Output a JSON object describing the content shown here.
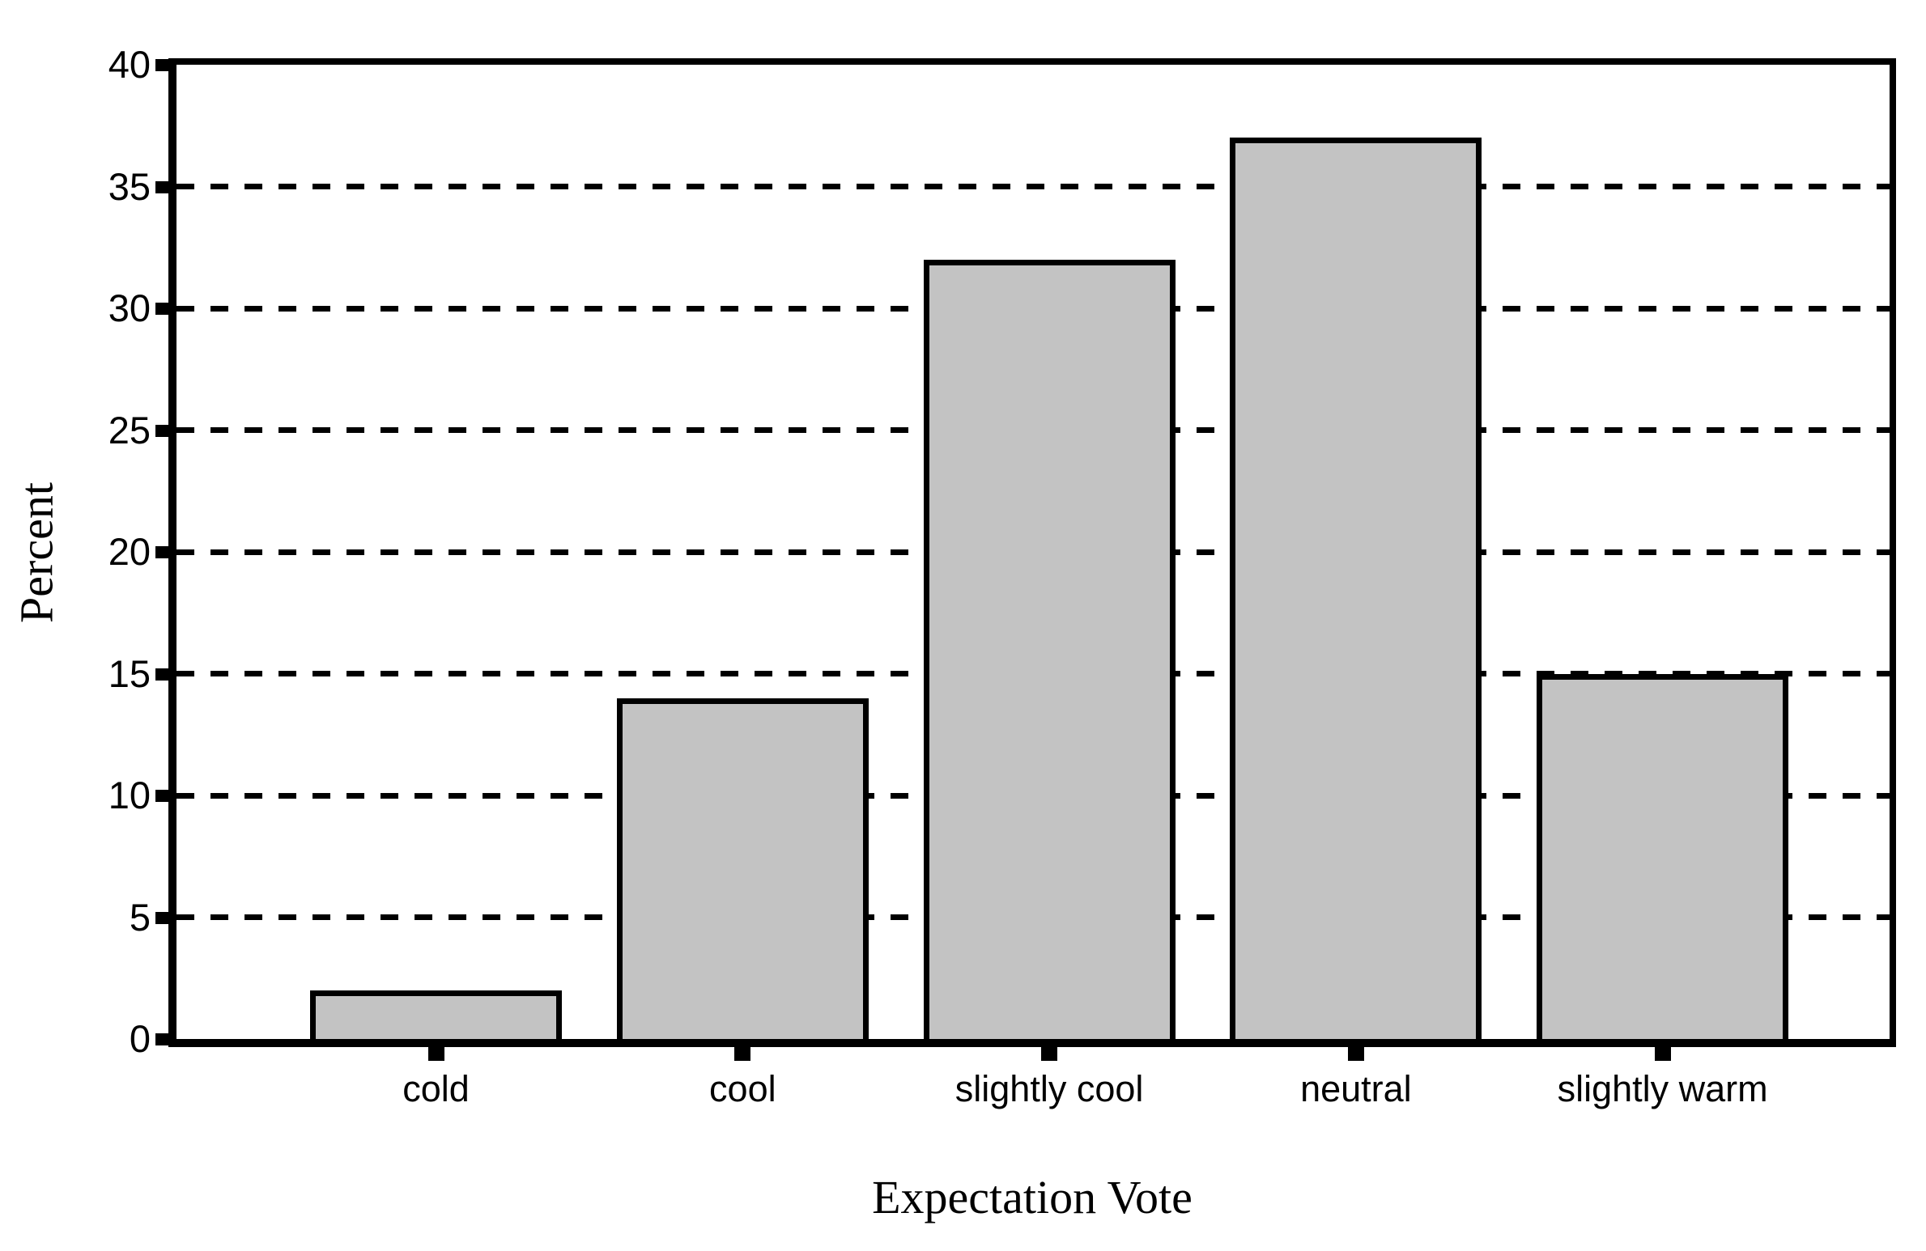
{
  "chart_data": {
    "type": "bar",
    "title": "",
    "categories": [
      "cold",
      "cool",
      "slightly cool",
      "neutral",
      "slightly warm"
    ],
    "values": [
      2,
      14,
      32,
      37,
      15
    ],
    "xlabel": "Expectation Vote",
    "ylabel": "Percent",
    "ylim": [
      0,
      40
    ],
    "yticks": [
      0,
      5,
      10,
      15,
      20,
      25,
      30,
      35,
      40
    ],
    "gridlines": [
      5,
      10,
      15,
      20,
      25,
      30,
      35
    ],
    "gridline_style": "dashed",
    "legend_position": "none",
    "bar_fill_color": "#c3c3c3",
    "bar_border_color": "#000000",
    "axis_color": "#000000",
    "background_color": "#ffffff"
  }
}
